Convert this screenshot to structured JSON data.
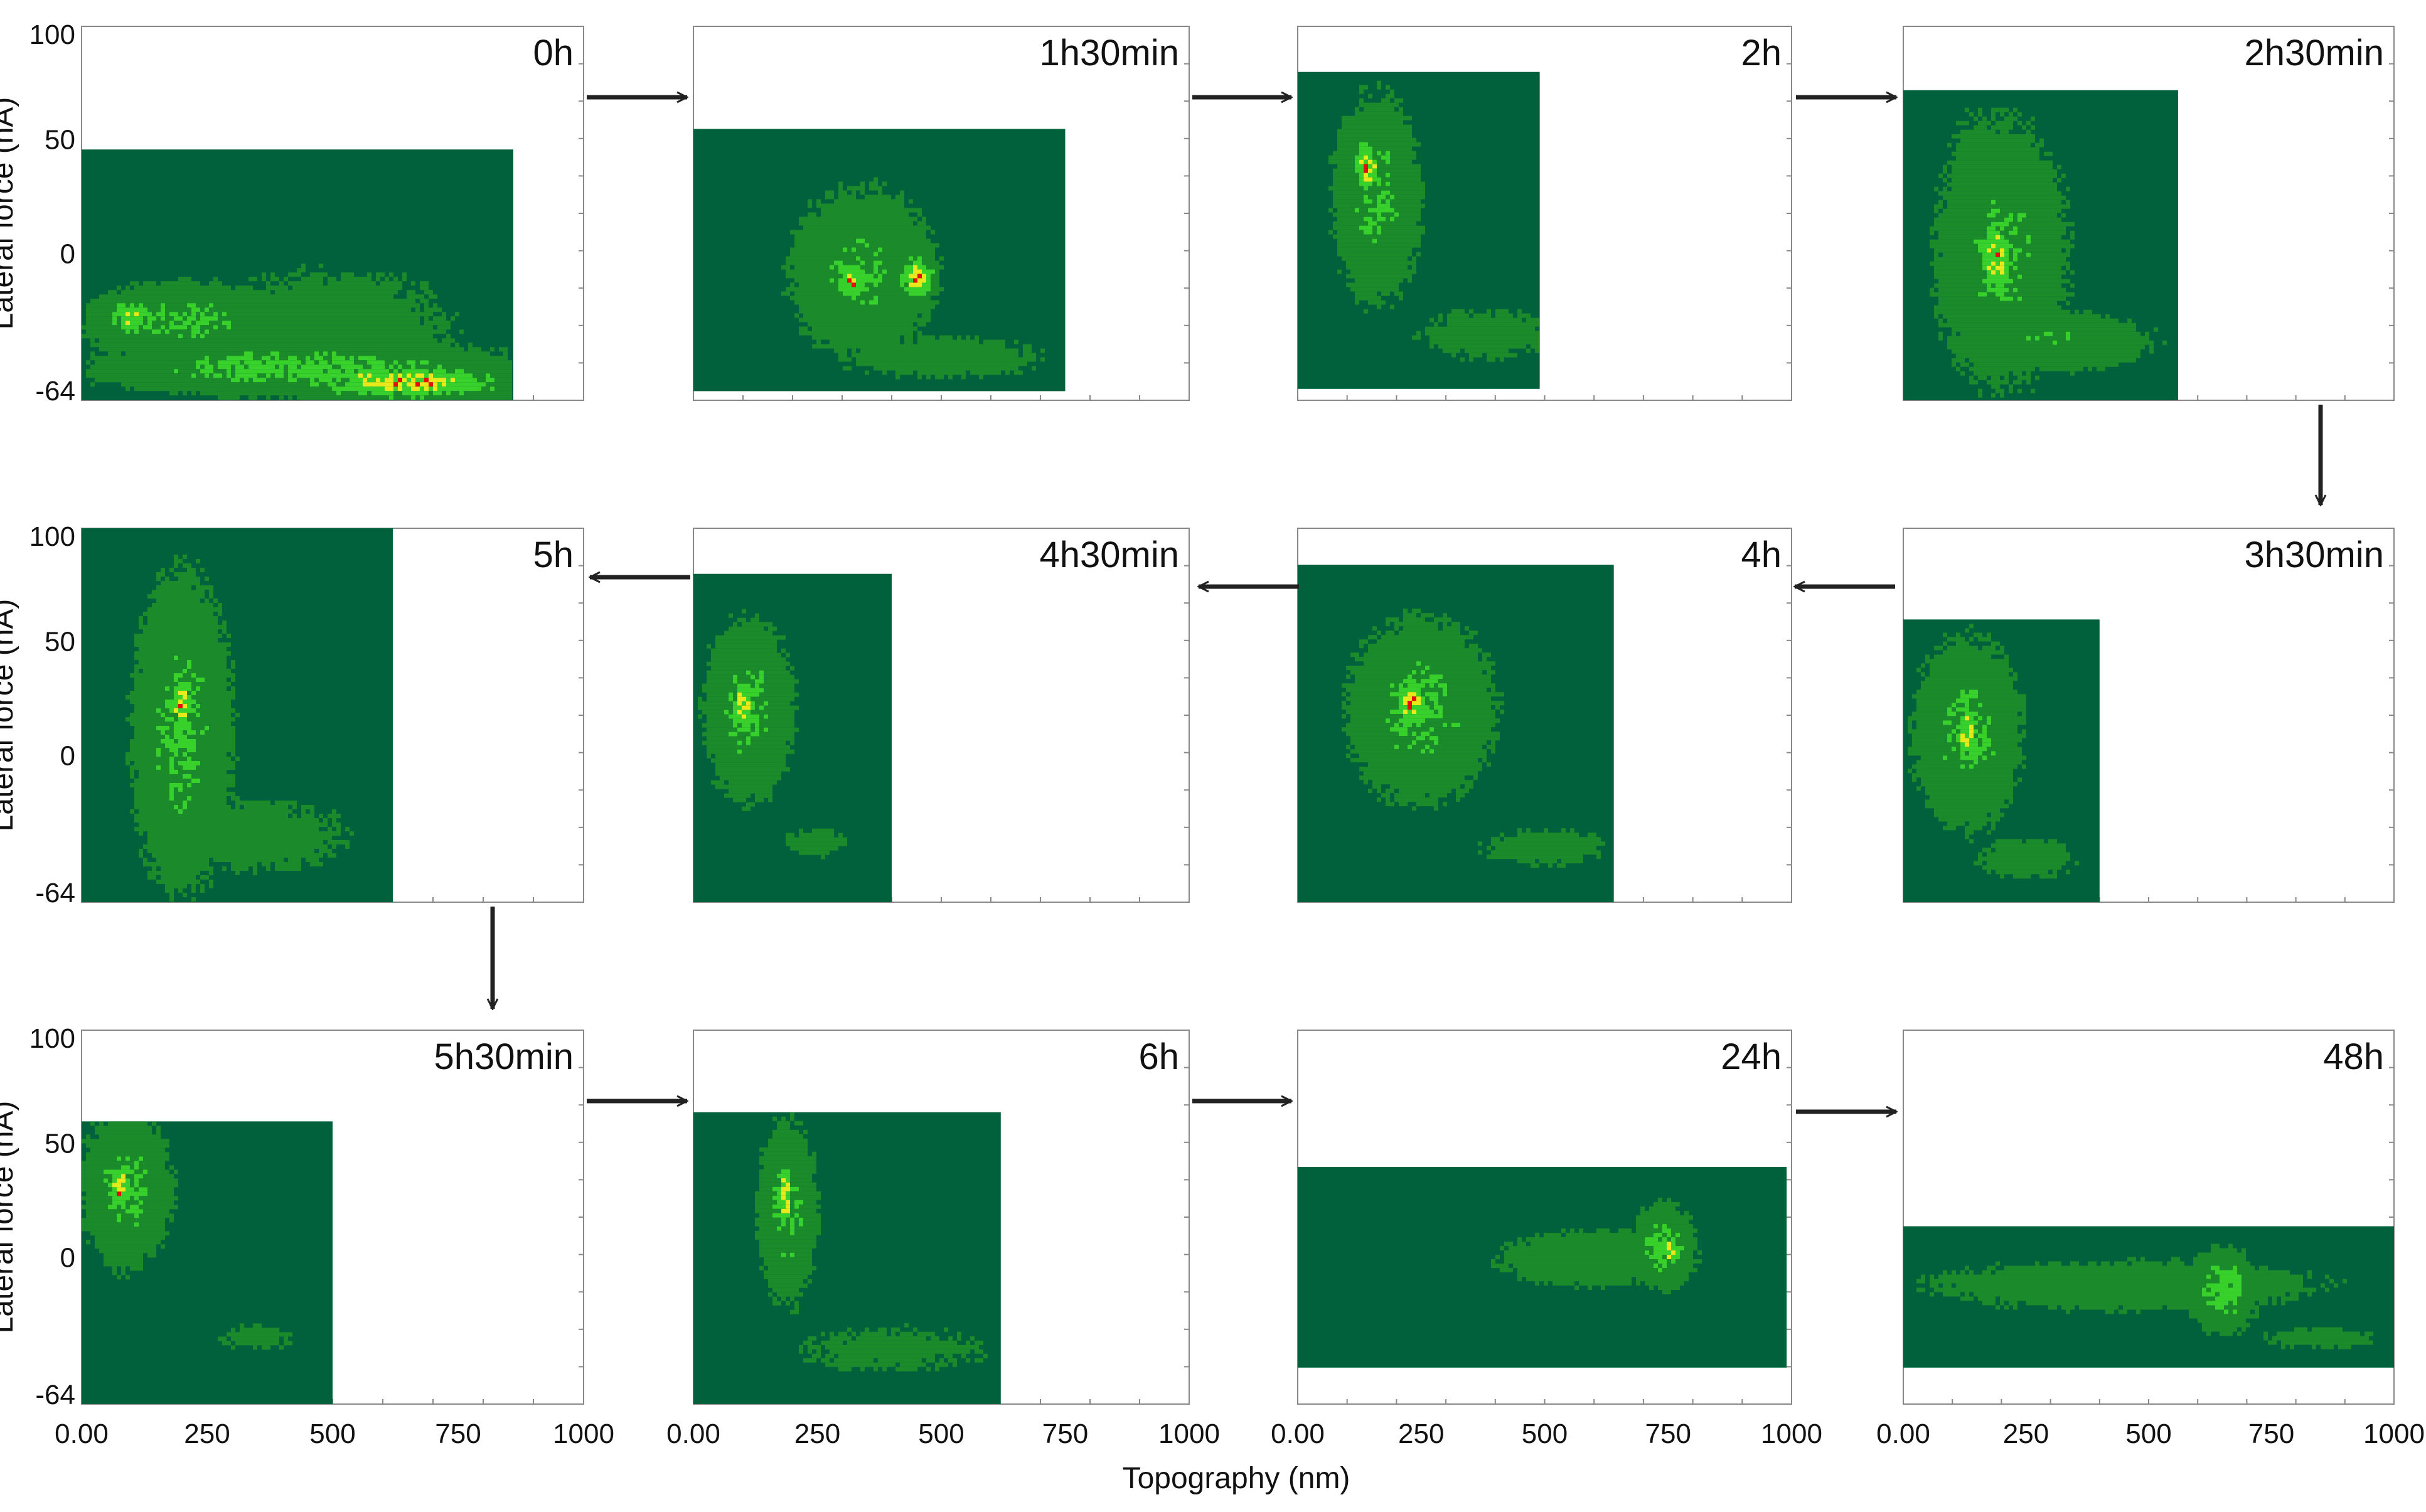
{
  "figure": {
    "xlabel": "Topography (nm)",
    "ylabel": "Lateral force (nA)"
  },
  "colors": {
    "background": "#01613d",
    "density_low": "#1b8a2a",
    "density_mid": "#38d02a",
    "density_high": "#e8e81a",
    "density_peak": "#e80c0c",
    "axis": "#888888"
  },
  "chart_data": {
    "type": "heatmap",
    "description_of_axes": {
      "x_range": [
        0,
        1000
      ],
      "y_range": [
        -64,
        100
      ],
      "x_ticks": [
        "0.00",
        "250",
        "500",
        "750",
        "1000"
      ],
      "y_ticks": [
        "100",
        "50",
        "0",
        "-64"
      ]
    },
    "panels": [
      {
        "time": "0h",
        "rect": {
          "x": [
            0,
            860
          ],
          "y": [
            -64,
            46
          ]
        },
        "blobs": [
          [
            450,
            -50,
            420,
            12,
            0.7
          ],
          [
            650,
            -56,
            220,
            8,
            1.0
          ],
          [
            200,
            -30,
            200,
            18,
            0.6
          ],
          [
            500,
            -30,
            300,
            30,
            0.35
          ],
          [
            100,
            -28,
            60,
            10,
            0.8
          ]
        ]
      },
      {
        "time": "1h30min",
        "rect": {
          "x": [
            0,
            750
          ],
          "y": [
            -60,
            55
          ]
        },
        "blobs": [
          [
            340,
            -8,
            150,
            38,
            0.55
          ],
          [
            320,
            -12,
            40,
            10,
            1.0
          ],
          [
            450,
            -10,
            40,
            10,
            1.0
          ],
          [
            500,
            -45,
            260,
            12,
            0.35
          ]
        ]
      },
      {
        "time": "2h",
        "rect": {
          "x": [
            0,
            490
          ],
          "y": [
            -59,
            80
          ]
        },
        "blobs": [
          [
            160,
            25,
            90,
            45,
            0.6
          ],
          [
            140,
            38,
            28,
            14,
            1.0
          ],
          [
            380,
            -35,
            180,
            14,
            0.35
          ]
        ]
      },
      {
        "time": "2h30min",
        "rect": {
          "x": [
            0,
            560
          ],
          "y": [
            -64,
            72
          ]
        },
        "blobs": [
          [
            200,
            0,
            140,
            60,
            0.55
          ],
          [
            190,
            -2,
            40,
            22,
            1.0
          ],
          [
            300,
            -38,
            220,
            14,
            0.5
          ],
          [
            150,
            30,
            80,
            40,
            0.35
          ]
        ]
      },
      {
        "time": "3h30min",
        "rect": {
          "x": [
            0,
            400
          ],
          "y": [
            -64,
            60
          ]
        },
        "blobs": [
          [
            130,
            10,
            110,
            42,
            0.6
          ],
          [
            130,
            10,
            25,
            14,
            1.0
          ],
          [
            250,
            -45,
            120,
            10,
            0.4
          ]
        ]
      },
      {
        "time": "4h",
        "rect": {
          "x": [
            0,
            640
          ],
          "y": [
            -64,
            84
          ]
        },
        "blobs": [
          [
            250,
            20,
            150,
            40,
            0.6
          ],
          [
            230,
            24,
            35,
            12,
            1.0
          ],
          [
            500,
            -40,
            160,
            10,
            0.35
          ]
        ]
      },
      {
        "time": "4h30min",
        "rect": {
          "x": [
            0,
            400
          ],
          "y": [
            -64,
            80
          ]
        },
        "blobs": [
          [
            110,
            20,
            90,
            40,
            0.6
          ],
          [
            100,
            22,
            30,
            12,
            1.0
          ],
          [
            250,
            -38,
            80,
            8,
            0.35
          ]
        ]
      },
      {
        "time": "5h",
        "rect": {
          "x": [
            0,
            620
          ],
          "y": [
            -64,
            100
          ]
        },
        "blobs": [
          [
            200,
            10,
            100,
            70,
            0.6
          ],
          [
            200,
            22,
            22,
            16,
            1.0
          ],
          [
            350,
            -35,
            220,
            20,
            0.35
          ],
          [
            190,
            -20,
            20,
            50,
            0.3
          ]
        ]
      },
      {
        "time": "5h30min",
        "rect": {
          "x": [
            0,
            500
          ],
          "y": [
            -64,
            60
          ]
        },
        "blobs": [
          [
            90,
            30,
            90,
            34,
            0.6
          ],
          [
            80,
            30,
            30,
            12,
            1.0
          ],
          [
            350,
            -35,
            100,
            8,
            0.3
          ]
        ]
      },
      {
        "time": "6h",
        "rect": {
          "x": [
            0,
            620
          ],
          "y": [
            -64,
            64
          ]
        },
        "blobs": [
          [
            190,
            20,
            60,
            40,
            0.6
          ],
          [
            185,
            28,
            20,
            18,
            1.0
          ],
          [
            400,
            -40,
            260,
            14,
            0.3
          ]
        ]
      },
      {
        "time": "24h",
        "rect": {
          "x": [
            0,
            990
          ],
          "y": [
            -48,
            40
          ]
        },
        "blobs": [
          [
            600,
            0,
            220,
            14,
            0.45
          ],
          [
            740,
            5,
            60,
            18,
            0.7
          ],
          [
            755,
            3,
            14,
            8,
            1.0
          ]
        ]
      },
      {
        "time": "48h",
        "rect": {
          "x": [
            0,
            1000
          ],
          "y": [
            -48,
            14
          ]
        },
        "blobs": [
          [
            450,
            -12,
            450,
            12,
            0.45
          ],
          [
            650,
            -14,
            70,
            18,
            0.7
          ],
          [
            680,
            -10,
            14,
            8,
            1.0
          ],
          [
            850,
            -35,
            150,
            6,
            0.35
          ]
        ]
      }
    ]
  }
}
